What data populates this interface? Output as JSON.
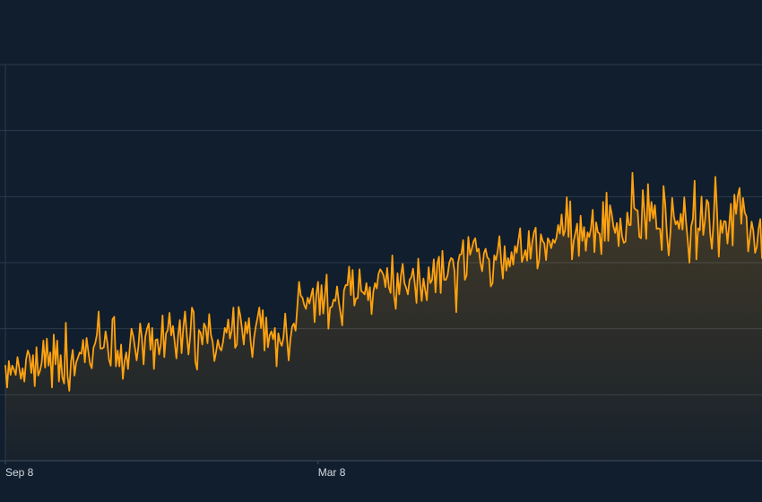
{
  "chart_data": {
    "type": "area",
    "title": "",
    "xlabel": "",
    "ylabel": "",
    "x_tick_labels": [
      {
        "label": "Sep 8",
        "day": 0
      },
      {
        "label": "Mar 8",
        "day": 181
      }
    ],
    "y_gridlines": 6,
    "ylim": [
      0,
      600
    ],
    "grid": true,
    "legend": "none",
    "colors": {
      "background": "#111e2d",
      "line": "#ffa20f",
      "grid": "#2c3b4d"
    },
    "series": [
      {
        "start": "Sep 8",
        "values": [
          144,
          111,
          151,
          130,
          144,
          138,
          130,
          157,
          141,
          124,
          140,
          120,
          154,
          167,
          159,
          133,
          160,
          113,
          172,
          129,
          136,
          148,
          182,
          141,
          185,
          144,
          164,
          111,
          191,
          146,
          182,
          120,
          160,
          126,
          117,
          209,
          128,
          106,
          150,
          168,
          129,
          149,
          156,
          164,
          162,
          183,
          149,
          186,
          166,
          147,
          140,
          171,
          178,
          191,
          226,
          170,
          170,
          172,
          196,
          179,
          153,
          144,
          214,
          218,
          143,
          167,
          143,
          176,
          124,
          151,
          164,
          139,
          171,
          200,
          189,
          171,
          152,
          173,
          208,
          187,
          146,
          188,
          200,
          208,
          168,
          201,
          139,
          183,
          184,
          161,
          177,
          220,
          157,
          193,
          198,
          224,
          190,
          204,
          180,
          155,
          190,
          213,
          163,
          201,
          226,
          192,
          161,
          189,
          232,
          225,
          150,
          138,
          198,
          194,
          176,
          208,
          202,
          178,
          222,
          191,
          180,
          151,
          165,
          183,
          171,
          167,
          180,
          201,
          194,
          214,
          185,
          197,
          232,
          171,
          176,
          233,
          220,
          199,
          176,
          210,
          193,
          216,
          180,
          157,
          187,
          204,
          217,
          232,
          201,
          228,
          167,
          217,
          172,
          190,
          196,
          184,
          201,
          143,
          193,
          180,
          174,
          187,
          223,
          186,
          152,
          184,
          203,
          208,
          197,
          233,
          271,
          250,
          247,
          236,
          230,
          247,
          238,
          250,
          261,
          210,
          252,
          271,
          221,
          266,
          223,
          251,
          282,
          200,
          232,
          233,
          244,
          242,
          264,
          241,
          224,
          205,
          258,
          266,
          266,
          294,
          251,
          289,
          235,
          246,
          246,
          290,
          257,
          255,
          252,
          269,
          243,
          263,
          222,
          256,
          269,
          261,
          283,
          290,
          286,
          280,
          263,
          292,
          263,
          254,
          311,
          250,
          230,
          284,
          252,
          281,
          298,
          269,
          262,
          252,
          274,
          278,
          291,
          268,
          239,
          306,
          271,
          242,
          276,
          259,
          243,
          293,
          269,
          274,
          305,
          255,
          298,
          309,
          254,
          318,
          274,
          274,
          281,
          300,
          307,
          305,
          287,
          225,
          299,
          312,
          313,
          334,
          274,
          281,
          339,
          312,
          321,
          332,
          337,
          317,
          321,
          300,
          287,
          314,
          321,
          308,
          305,
          264,
          269,
          311,
          304,
          318,
          340,
          303,
          276,
          325,
          288,
          307,
          294,
          316,
          297,
          325,
          315,
          334,
          352,
          301,
          309,
          319,
          303,
          348,
          306,
          331,
          346,
          353,
          291,
          304,
          343,
          333,
          329,
          304,
          337,
          332,
          322,
          335,
          330,
          338,
          357,
          344,
          373,
          341,
          349,
          399,
          339,
          393,
          305,
          333,
          345,
          359,
          310,
          371,
          333,
          354,
          318,
          346,
          339,
          352,
          380,
          316,
          361,
          346,
          344,
          313,
          392,
          333,
          406,
          333,
          387,
          374,
          355,
          345,
          360,
          325,
          367,
          340,
          330,
          332,
          376,
          357,
          357,
          436,
          383,
          380,
          379,
          339,
          337,
          410,
          373,
          336,
          419,
          363,
          392,
          367,
          387,
          351,
          352,
          351,
          319,
          416,
          388,
          341,
          311,
          346,
          398,
          370,
          358,
          363,
          351,
          374,
          350,
          399,
          363,
          334,
          300,
          355,
          366,
          424,
          305,
          352,
          349,
          400,
          342,
          364,
          395,
          390,
          344,
          321,
          364,
          430,
          376,
          309,
          364,
          345,
          363,
          362,
          329,
          357,
          389,
          326,
          403,
          374,
          401,
          413,
          359,
          398,
          376,
          370,
          317,
          338,
          362,
          348,
          315,
          324,
          351,
          366,
          307
        ]
      }
    ]
  }
}
